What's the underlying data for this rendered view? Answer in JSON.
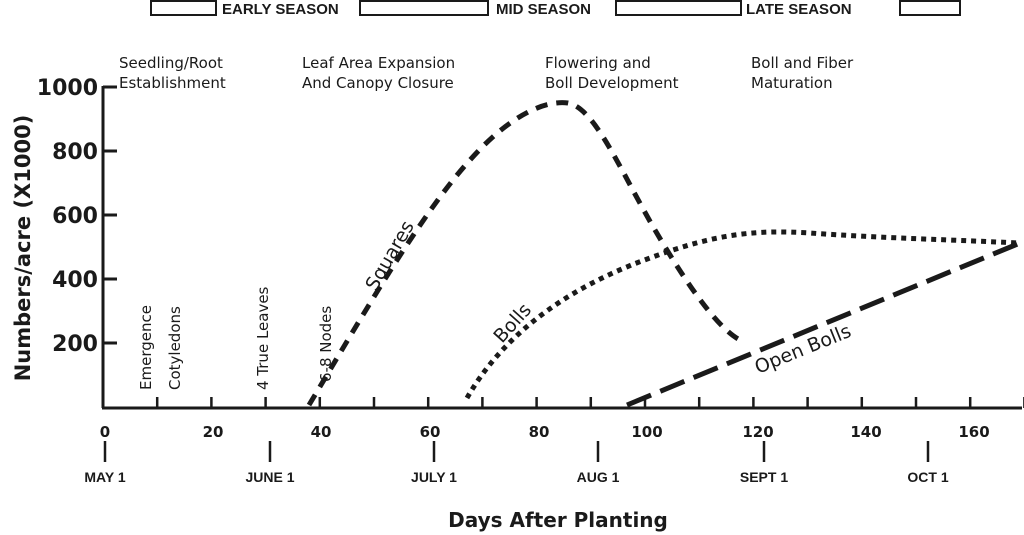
{
  "seasons": [
    {
      "label": "EARLY SEASON"
    },
    {
      "label": "MID SEASON"
    },
    {
      "label": "LATE SEASON"
    }
  ],
  "stages": [
    {
      "line1": "Seedling/Root",
      "line2": "Establishment"
    },
    {
      "line1": "Leaf Area Expansion",
      "line2": "And Canopy Closure"
    },
    {
      "line1": "Flowering and",
      "line2": "Boll Development"
    },
    {
      "line1": "Boll and Fiber",
      "line2": "Maturation"
    }
  ],
  "events": [
    {
      "label": "Emergence",
      "day": 7
    },
    {
      "label": "Cotyledons",
      "day": 12
    },
    {
      "label": "4 True Leaves",
      "day": 29
    },
    {
      "label": "6-8 Nodes",
      "day": 40
    }
  ],
  "axis": {
    "ylabel": "Numbers/acre (X1000)",
    "xlabel": "Days After Planting",
    "yticks": [
      "200",
      "400",
      "600",
      "800",
      "1000"
    ],
    "xticks": [
      "0",
      "20",
      "40",
      "60",
      "80",
      "100",
      "120",
      "140",
      "160"
    ],
    "months": [
      "MAY 1",
      "JUNE 1",
      "JULY 1",
      "AUG 1",
      "SEPT 1",
      "OCT 1"
    ]
  },
  "series_labels": {
    "squares": "Squares",
    "bolls": "Bolls",
    "open_bolls": "Open Bolls"
  },
  "chart_data": {
    "type": "line",
    "title": "",
    "xlabel": "Days After Planting",
    "ylabel": "Numbers/acre (X1000)",
    "xlim": [
      0,
      170
    ],
    "ylim": [
      0,
      1000
    ],
    "grid": false,
    "legend": "inline labels",
    "x_ticks": [
      0,
      20,
      40,
      60,
      80,
      100,
      120,
      140,
      160
    ],
    "y_ticks": [
      200,
      400,
      600,
      800,
      1000
    ],
    "secondary_x_labels": [
      {
        "label": "MAY 1",
        "day": 0
      },
      {
        "label": "JUNE 1",
        "day": 31
      },
      {
        "label": "JULY 1",
        "day": 61
      },
      {
        "label": "AUG 1",
        "day": 92
      },
      {
        "label": "SEPT 1",
        "day": 123
      },
      {
        "label": "OCT 1",
        "day": 153
      }
    ],
    "season_bands": [
      "EARLY SEASON",
      "MID SEASON",
      "LATE SEASON"
    ],
    "growth_stages": [
      "Seedling/Root Establishment",
      "Leaf Area Expansion And Canopy Closure",
      "Flowering and Boll Development",
      "Boll and Fiber Maturation"
    ],
    "annotations": [
      "Emergence",
      "Cotyledons",
      "4 True Leaves",
      "6-8 Nodes"
    ],
    "series": [
      {
        "name": "Squares",
        "style": "dashed",
        "x": [
          38,
          45,
          55,
          65,
          75,
          82,
          86,
          90,
          95,
          100,
          105,
          110,
          118
        ],
        "y": [
          0,
          150,
          380,
          620,
          810,
          910,
          930,
          900,
          780,
          620,
          480,
          360,
          210
        ]
      },
      {
        "name": "Bolls",
        "style": "dotted",
        "x": [
          67,
          72,
          80,
          90,
          100,
          110,
          120,
          130,
          140,
          150,
          160,
          170
        ],
        "y": [
          0,
          150,
          300,
          400,
          470,
          515,
          530,
          525,
          515,
          510,
          505,
          500
        ]
      },
      {
        "name": "Open Bolls",
        "style": "long-dashed",
        "x": [
          97,
          110,
          120,
          130,
          140,
          150,
          160,
          170
        ],
        "y": [
          0,
          120,
          190,
          260,
          320,
          380,
          440,
          510
        ]
      }
    ]
  }
}
